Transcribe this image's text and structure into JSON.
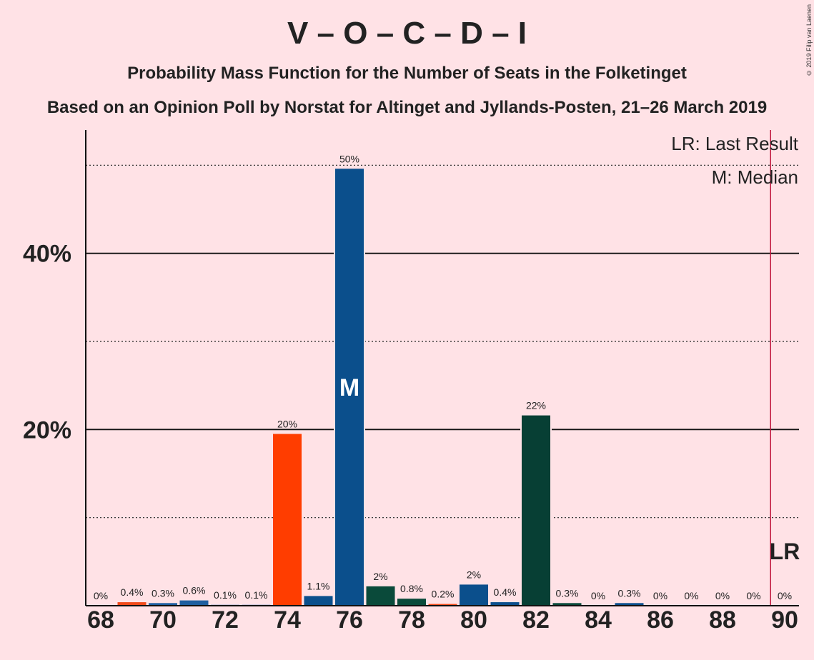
{
  "header": {
    "title": "V – O – C – D – I",
    "subtitle": "Probability Mass Function for the Number of Seats in the Folketinget",
    "subtitle2": "Based on an Opinion Poll by Norstat for Altinget and Jyllands-Posten, 21–26 March 2019",
    "copyright": "© 2019 Filip van Laenen"
  },
  "legend": {
    "last_result": "LR: Last Result",
    "median": "M: Median"
  },
  "chart_data": {
    "type": "bar",
    "x": [
      68,
      69,
      70,
      71,
      72,
      73,
      74,
      75,
      76,
      77,
      78,
      79,
      80,
      81,
      82,
      83,
      84,
      85,
      86,
      87,
      88,
      89,
      90
    ],
    "values": [
      0,
      0.4,
      0.3,
      0.6,
      0.1,
      0.1,
      19.5,
      1.1,
      49.6,
      2.2,
      0.8,
      0.2,
      2.4,
      0.4,
      21.6,
      0.3,
      0,
      0.3,
      0,
      0,
      0,
      0,
      0
    ],
    "value_labels": [
      "0%",
      "0.4%",
      "0.3%",
      "0.6%",
      "0.1%",
      "0.1%",
      "20%",
      "1.1%",
      "50%",
      "2%",
      "0.8%",
      "0.2%",
      "2%",
      "0.4%",
      "22%",
      "0.3%",
      "0%",
      "0.3%",
      "0%",
      "0%",
      "0%",
      "0%",
      "0%"
    ],
    "bar_colors": [
      "#C0392B",
      "#F04A1A",
      "#1F5FA0",
      "#1F5FA0",
      "#1F5FA0",
      "#1F5FA0",
      "#FF3D00",
      "#0B4F8C",
      "#0B4F8C",
      "#0A4A3A",
      "#0A4A3A",
      "#F04A1A",
      "#0B4F8C",
      "#0B4F8C",
      "#073F34",
      "#0A4A3A",
      "#0B4F8C",
      "#0B4F8C",
      "#0B4F8C",
      "#0B4F8C",
      "#0B4F8C",
      "#0B4F8C",
      "#0B4F8C"
    ],
    "x_tick_labels": [
      "68",
      "70",
      "72",
      "74",
      "76",
      "78",
      "80",
      "82",
      "84",
      "86",
      "88",
      "90"
    ],
    "y_tick_labels": [
      "20%",
      "40%"
    ],
    "ylim": [
      0,
      54
    ],
    "solid_gridlines": [
      20,
      40
    ],
    "dotted_gridlines": [
      10,
      30,
      50
    ],
    "median_seat": 76,
    "median_label": "M",
    "last_result_seat": 89.5,
    "last_result_label": "LR",
    "colors": {
      "background": "#ffe2e6",
      "last_result_line": "#C0163C"
    }
  }
}
